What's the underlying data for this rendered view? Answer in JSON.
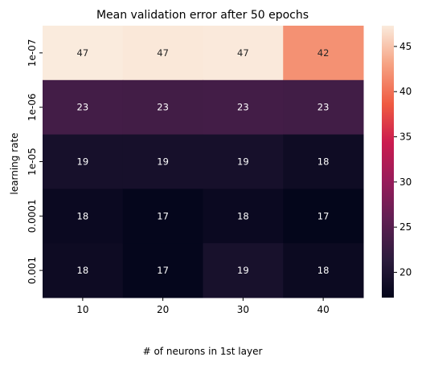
{
  "chart_data": {
    "type": "heatmap",
    "title": "Mean validation error after 50 epochs",
    "xlabel": "# of neurons in 1st layer",
    "ylabel": "learning rate",
    "x_categories": [
      "10",
      "20",
      "30",
      "40"
    ],
    "y_categories": [
      "1e-07",
      "1e-06",
      "1e-05",
      "0.0001",
      "0.001"
    ],
    "values": [
      [
        47.3,
        47.1,
        47.2,
        42.0
      ],
      [
        23.4,
        23.3,
        23.4,
        23.2
      ],
      [
        19.3,
        19.3,
        19.3,
        18.4
      ],
      [
        18.0,
        17.4,
        18.0,
        17.3
      ],
      [
        18.3,
        17.4,
        19.4,
        18.1
      ]
    ],
    "annotations": [
      [
        "47",
        "47",
        "47",
        "42"
      ],
      [
        "23",
        "23",
        "23",
        "23"
      ],
      [
        "19",
        "19",
        "19",
        "18"
      ],
      [
        "18",
        "17",
        "18",
        "17"
      ],
      [
        "18",
        "17",
        "19",
        "18"
      ]
    ],
    "colorbar": {
      "range": [
        17.2,
        47.3
      ],
      "ticks": [
        "20",
        "25",
        "30",
        "35",
        "40",
        "45"
      ],
      "colormap": "rocket"
    },
    "grid": false
  }
}
